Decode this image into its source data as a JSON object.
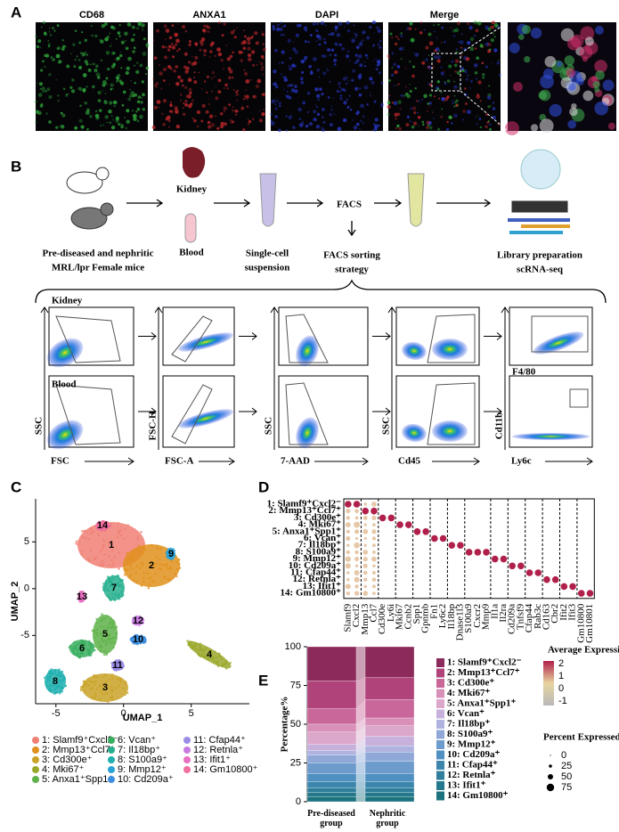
{
  "panel_labels": [
    "A",
    "B",
    "C",
    "D",
    "E"
  ],
  "A": {
    "channels": [
      "CD68",
      "ANXA1",
      "DAPI",
      "Merge"
    ]
  },
  "B": {
    "mice": [
      "Pre-diseased and nephritic",
      "MRL/lpr Female mice"
    ],
    "kidney": "Kidney",
    "blood": "Blood",
    "suspension": [
      "Single-cell",
      "suspension"
    ],
    "facs": "FACS",
    "sorting": [
      "FACS sorting",
      "strategy"
    ],
    "library": [
      "Library preparation",
      "scRNA-seq"
    ],
    "gating": {
      "rows": [
        "Kidney",
        "Blood"
      ],
      "y_axes": [
        "SSC",
        "FSC-H",
        "SSC",
        "SSC",
        "Cd11b"
      ],
      "x_axes": [
        "FSC",
        "FSC-A",
        "7-AAD",
        "Cd45",
        "Ly6c"
      ],
      "inset_x": "F4/80"
    }
  },
  "C": {
    "x_label": "UMAP_1",
    "y_label": "UMAP_2",
    "xlim": [
      -6.5,
      9.3
    ],
    "ylim": [
      -12.3,
      9.6
    ],
    "xticks": [
      -5,
      0,
      5
    ],
    "yticks": [
      5,
      0,
      -5
    ],
    "cluster_ids": [
      "1",
      "2",
      "3",
      "4",
      "5",
      "6",
      "7",
      "8",
      "9",
      "10",
      "11",
      "12",
      "13",
      "14"
    ],
    "colors": [
      "#f07f73",
      "#e0901c",
      "#c9a227",
      "#9aa82a",
      "#5fb14a",
      "#3aae5f",
      "#27b08e",
      "#1fafaf",
      "#29a3d6",
      "#3d8fe0",
      "#9a8ce6",
      "#c77ae0",
      "#e86fc3",
      "#f06ea0"
    ]
  },
  "D": {
    "genes": [
      "Slamf9",
      "Cxcl2",
      "Mmp13",
      "Ccl7",
      "Cd300e",
      "Ly6i",
      "Mki67",
      "Ccnb2",
      "Spp1",
      "Gpnmb",
      "Fn1",
      "Ly6c2",
      "Il18bp",
      "Dnase1l3",
      "S100a9",
      "Cxcr2",
      "Mmp9",
      "Il1a",
      "Il2ra",
      "Cd209a",
      "Tnfsf9",
      "Cfap44",
      "Rab3c",
      "Cd163",
      "Cbr2",
      "Ifit2",
      "Ifit3",
      "Gm10800",
      "Gm10801"
    ],
    "color_scale": {
      "title": "Average Expression",
      "ticks": [
        2,
        1,
        0,
        -1
      ]
    },
    "size_scale": {
      "title": "Percent Expressed",
      "ticks": [
        0,
        25,
        50,
        75
      ]
    }
  },
  "chart_data": {
    "type": "stacked_bar",
    "y_label": "Percentage%",
    "categories": [
      "Pre-diseased group",
      "Nephritic group"
    ],
    "ylim": [
      0,
      100
    ],
    "yticks": [
      0,
      25,
      50,
      75,
      100
    ],
    "series": [
      {
        "name": "1: Slamf9⁺Cxcl2⁻",
        "color": "#8c2b5b",
        "values": [
          22,
          20
        ]
      },
      {
        "name": "2: Mmp13⁺Ccl7⁺",
        "color": "#b0437a",
        "values": [
          18,
          14
        ]
      },
      {
        "name": "3: Cd300e⁺",
        "color": "#c9679a",
        "values": [
          10,
          12
        ]
      },
      {
        "name": "4: Mki67⁺",
        "color": "#d88fb8",
        "values": [
          5,
          5
        ]
      },
      {
        "name": "5: Anxa1⁺Spp1⁺",
        "color": "#dba8cc",
        "values": [
          8,
          7
        ]
      },
      {
        "name": "6: Vcan⁺",
        "color": "#c7b1dc",
        "values": [
          4,
          6
        ]
      },
      {
        "name": "7: Il18bp⁺",
        "color": "#b0b3e0",
        "values": [
          3,
          4
        ]
      },
      {
        "name": "8: S100a9⁺",
        "color": "#8fa8d8",
        "values": [
          5,
          6
        ]
      },
      {
        "name": "9: Mmp12⁺",
        "color": "#6d9bcc",
        "values": [
          7,
          8
        ]
      },
      {
        "name": "10: Cd209a⁺",
        "color": "#4f90c0",
        "values": [
          5,
          5
        ]
      },
      {
        "name": "11: Cfap44⁺",
        "color": "#3c86ad",
        "values": [
          4,
          4
        ]
      },
      {
        "name": "12: Retnla⁺",
        "color": "#2f7f9c",
        "values": [
          3,
          3
        ]
      },
      {
        "name": "13: Ifit1⁺",
        "color": "#25798c",
        "values": [
          3,
          3
        ]
      },
      {
        "name": "14: Gm10800⁺",
        "color": "#1c737e",
        "values": [
          3,
          3
        ]
      }
    ]
  }
}
